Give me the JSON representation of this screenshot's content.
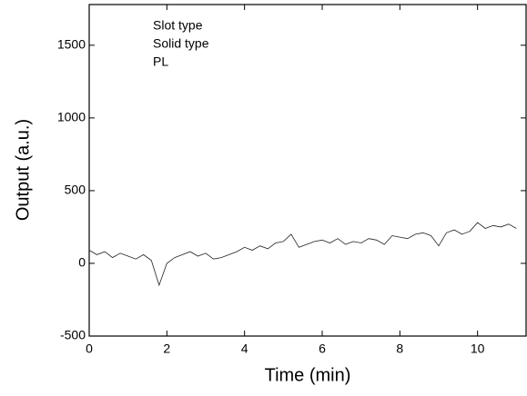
{
  "chart_data": {
    "type": "line",
    "x_label": "Time (min)",
    "y_label": "Output (a.u.)",
    "annotations": [
      "Slot type",
      "Solid type",
      "PL"
    ],
    "x": [
      0,
      0.2,
      0.4,
      0.6,
      0.8,
      1.0,
      1.2,
      1.4,
      1.6,
      1.8,
      2.0,
      2.2,
      2.4,
      2.6,
      2.8,
      3.0,
      3.2,
      3.4,
      3.6,
      3.8,
      4.0,
      4.2,
      4.4,
      4.6,
      4.8,
      5.0,
      5.2,
      5.4,
      5.6,
      5.8,
      6.0,
      6.2,
      6.4,
      6.6,
      6.8,
      7.0,
      7.2,
      7.4,
      7.6,
      7.8,
      8.0,
      8.2,
      8.4,
      8.6,
      8.8,
      9.0,
      9.2,
      9.4,
      9.6,
      9.8,
      10.0,
      10.2,
      10.4,
      10.6,
      10.8,
      11.0
    ],
    "series": [
      {
        "color": "#222222",
        "values": [
          90,
          60,
          80,
          40,
          70,
          50,
          30,
          60,
          20,
          -150,
          0,
          40,
          60,
          80,
          50,
          70,
          30,
          40,
          60,
          80,
          110,
          90,
          120,
          100,
          140,
          150,
          200,
          110,
          130,
          150,
          160,
          140,
          170,
          130,
          150,
          140,
          170,
          160,
          130,
          190,
          180,
          170,
          200,
          210,
          190,
          120,
          210,
          230,
          200,
          220,
          280,
          240,
          260,
          250,
          270,
          240
        ]
      }
    ],
    "xlim": [
      0,
      11.25
    ],
    "xticks": [
      0,
      2,
      4,
      6,
      8,
      10
    ],
    "ylim": [
      -500,
      1780
    ],
    "yticks": [
      -500,
      0,
      500,
      1000,
      1500
    ]
  }
}
